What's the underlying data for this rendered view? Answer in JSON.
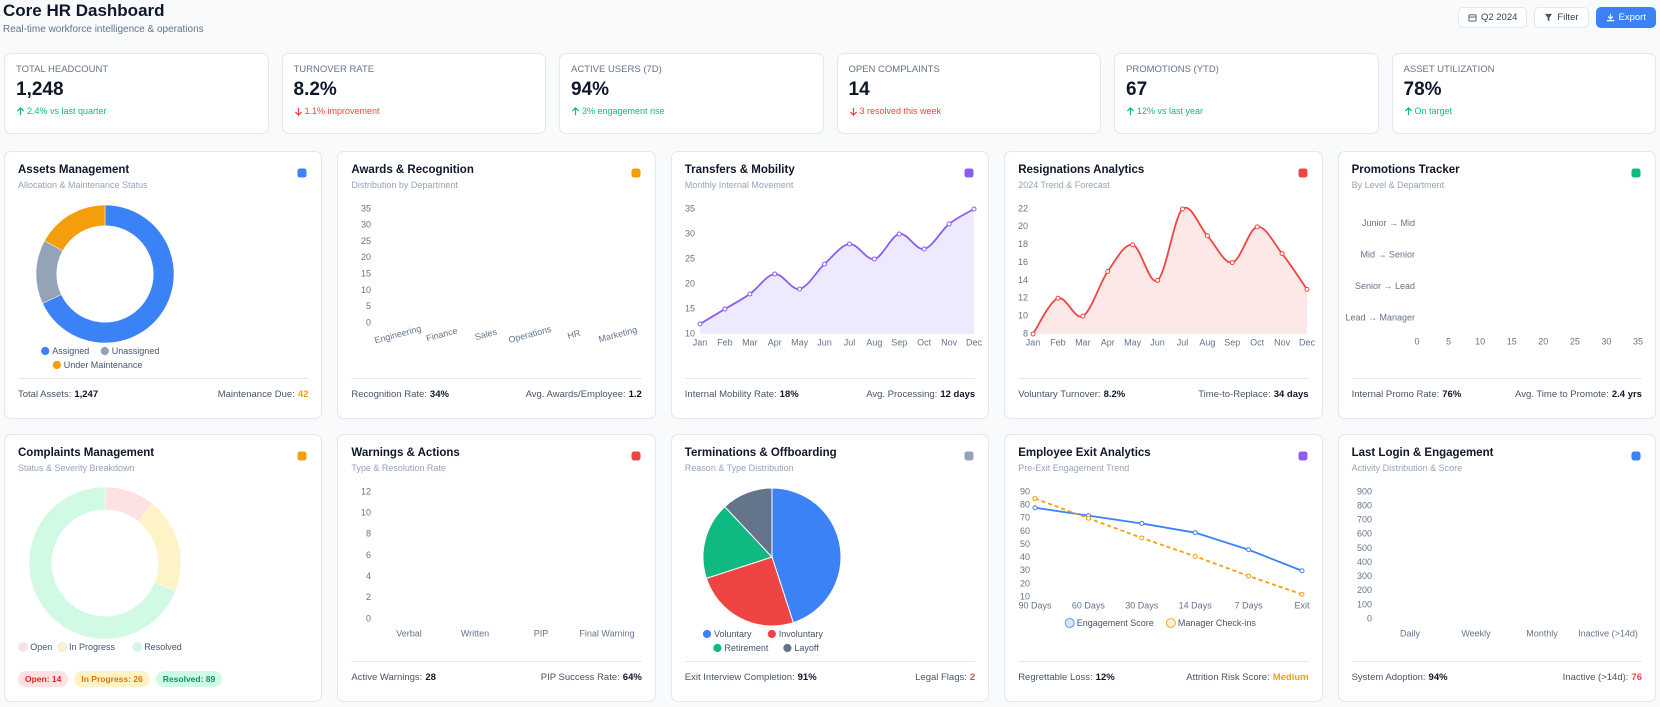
{
  "header": {
    "title": "Core HR Dashboard",
    "subtitle": "Real-time workforce intelligence & operations",
    "buttons": [
      "Q2 2024",
      "Filter",
      "Export"
    ]
  },
  "kpis": [
    {
      "label": "TOTAL HEADCOUNT",
      "value": "1,248",
      "change": "2.4% vs last quarter",
      "trend": "up"
    },
    {
      "label": "TURNOVER RATE",
      "value": "8.2%",
      "change": "1.1% improvement",
      "trend": "down"
    },
    {
      "label": "ACTIVE USERS (7D)",
      "value": "94%",
      "change": "3% engagement rise",
      "trend": "up"
    },
    {
      "label": "OPEN COMPLAINTS",
      "value": "14",
      "change": "3 resolved this week",
      "trend": "down"
    },
    {
      "label": "PROMOTIONS (YTD)",
      "value": "67",
      "change": "12% vs last year",
      "trend": "up"
    },
    {
      "label": "ASSET UTILIZATION",
      "value": "78%",
      "change": "On target",
      "trend": "up"
    }
  ],
  "panels": [
    {
      "title": "Assets Management",
      "subtitle": "Allocation & Maintenance Status",
      "accent": "#3b82f6",
      "chart": {
        "type": "donut",
        "categories": [
          "Assigned",
          "Unassigned",
          "Under Maintenance"
        ],
        "values": [
          68,
          15,
          17
        ],
        "colors": [
          "#3b82f6",
          "#94a3b8",
          "#f59e0b"
        ]
      },
      "footer": [
        {
          "label": "Total Assets:",
          "value": "1,247"
        },
        {
          "label": "Maintenance Due:",
          "value": "42",
          "color": "#f59e0b"
        }
      ]
    },
    {
      "title": "Awards & Recognition",
      "subtitle": "Distribution by Department",
      "accent": "#f59e0b",
      "chart": {
        "type": "bar",
        "categories": [
          "Engineering",
          "Finance",
          "Sales",
          "Operations",
          "HR",
          "Marketing"
        ],
        "ylim": [
          0,
          35
        ],
        "yticks": [
          0,
          5,
          10,
          15,
          20,
          25,
          30,
          35
        ],
        "label_angle": -15
      },
      "footer": [
        {
          "label": "Recognition Rate:",
          "value": "34%"
        },
        {
          "label": "Avg. Awards/Employee:",
          "value": "1.2"
        }
      ]
    },
    {
      "title": "Transfers & Mobility",
      "subtitle": "Monthly Internal Movement",
      "accent": "#8b5cf6",
      "chart": {
        "type": "line",
        "categories": [
          "Jan",
          "Feb",
          "Mar",
          "Apr",
          "May",
          "Jun",
          "Jul",
          "Aug",
          "Sep",
          "Oct",
          "Nov",
          "Dec"
        ],
        "values": [
          12,
          15,
          18,
          22,
          19,
          24,
          28,
          25,
          30,
          27,
          32,
          35
        ],
        "color": "#8b5cf6",
        "area_color": "#ede9fe",
        "smooth": true,
        "ylim": [
          10,
          35
        ],
        "yticks": [
          10,
          15,
          20,
          25,
          30,
          35
        ]
      },
      "footer": [
        {
          "label": "Internal Mobility Rate:",
          "value": "18%"
        },
        {
          "label": "Avg. Processing:",
          "value": "12 days"
        }
      ]
    },
    {
      "title": "Resignations Analytics",
      "subtitle": "2024 Trend & Forecast",
      "accent": "#ef4444",
      "chart": {
        "type": "line",
        "categories": [
          "Jan",
          "Feb",
          "Mar",
          "Apr",
          "May",
          "Jun",
          "Jul",
          "Aug",
          "Sep",
          "Oct",
          "Nov",
          "Dec"
        ],
        "values": [
          8,
          12,
          10,
          15,
          18,
          14,
          22,
          19,
          16,
          20,
          17,
          13
        ],
        "color": "#ef4444",
        "area_color": "#fde8e8",
        "smooth": true,
        "ylim": [
          8,
          22
        ],
        "yticks": [
          8,
          10,
          12,
          14,
          16,
          18,
          20,
          22
        ]
      },
      "footer": [
        {
          "label": "Voluntary Turnover:",
          "value": "8.2%"
        },
        {
          "label": "Time-to-Replace:",
          "value": "34 days"
        }
      ]
    },
    {
      "title": "Promotions Tracker",
      "subtitle": "By Level & Department",
      "accent": "#10b981",
      "chart": {
        "type": "hbar",
        "categories": [
          "Junior → Mid",
          "Mid → Senior",
          "Senior → Lead",
          "Lead → Manager"
        ],
        "xlim": [
          0,
          35
        ],
        "xticks": [
          0,
          5,
          10,
          15,
          20,
          25,
          30,
          35
        ]
      },
      "footer": [
        {
          "label": "Internal Promo Rate:",
          "value": "76%"
        },
        {
          "label": "Avg. Time to Promote:",
          "value": "2.4 yrs"
        }
      ]
    },
    {
      "title": "Complaints Management",
      "subtitle": "Status & Severity Breakdown",
      "accent": "#f59e0b",
      "chart": {
        "type": "donut",
        "categories": [
          "Open",
          "In Progress",
          "Resolved"
        ],
        "values": [
          14,
          26,
          89
        ],
        "value_labels": [
          "Open: 14",
          "In Progress: 26",
          "Resolved: 89"
        ],
        "colors": [
          "#fee2e2",
          "#fef3c7",
          "#d1fae5"
        ],
        "label_colors": [
          "#dc2626",
          "#d97706",
          "#059669"
        ]
      }
    },
    {
      "title": "Warnings & Actions",
      "subtitle": "Type & Resolution Rate",
      "accent": "#ef4444",
      "chart": {
        "type": "bar",
        "categories": [
          "Verbal",
          "Written",
          "PIP",
          "Final Warning"
        ],
        "ylim": [
          0,
          12
        ],
        "yticks": [
          0,
          2,
          4,
          6,
          8,
          10,
          12
        ]
      },
      "footer": [
        {
          "label": "Active Warnings:",
          "value": "28"
        },
        {
          "label": "PIP Success Rate:",
          "value": "64%"
        }
      ]
    },
    {
      "title": "Terminations & Offboarding",
      "subtitle": "Reason & Type Distribution",
      "accent": "#94a3b8",
      "chart": {
        "type": "pie",
        "categories": [
          "Voluntary",
          "Involuntary",
          "Retirement",
          "Layoff"
        ],
        "values": [
          45,
          25,
          18,
          12
        ],
        "colors": [
          "#3b82f6",
          "#ef4444",
          "#10b981",
          "#64748b"
        ]
      },
      "footer": [
        {
          "label": "Exit Interview Completion:",
          "value": "91%"
        },
        {
          "label": "Legal Flags:",
          "value": "2",
          "color": "#ef4444"
        }
      ]
    },
    {
      "title": "Employee Exit Analytics",
      "subtitle": "Pre-Exit Engagement Trend",
      "accent": "#8b5cf6",
      "chart": {
        "type": "line",
        "categories": [
          "90 Days",
          "60 Days",
          "30 Days",
          "14 Days",
          "7 Days",
          "Exit"
        ],
        "series": [
          {
            "name": "Engagement Score",
            "color": "#3b82f6",
            "values": [
              78,
              72,
              66,
              59,
              46,
              30
            ]
          },
          {
            "name": "Manager Check-ins",
            "color": "#f59e0b",
            "dash": true,
            "values": [
              85,
              70,
              55,
              41,
              26,
              12
            ]
          }
        ],
        "ylim": [
          10,
          90
        ],
        "yticks": [
          10,
          20,
          30,
          40,
          50,
          60,
          70,
          80,
          90
        ]
      },
      "footer": [
        {
          "label": "Regrettable Loss:",
          "value": "12%"
        },
        {
          "label": "Attrition Risk Score:",
          "value": "Medium",
          "color": "#f59e0b"
        }
      ]
    },
    {
      "title": "Last Login & Engagement",
      "subtitle": "Activity Distribution & Score",
      "accent": "#3b82f6",
      "chart": {
        "type": "bar",
        "categories": [
          "Daily",
          "Weekly",
          "Monthly",
          "Inactive (>14d)"
        ],
        "ylim": [
          0,
          900
        ],
        "yticks": [
          0,
          100,
          200,
          300,
          400,
          500,
          600,
          700,
          800,
          900
        ]
      },
      "footer": [
        {
          "label": "System Adoption:",
          "value": "94%"
        },
        {
          "label": "Inactive (>14d):",
          "value": "76",
          "color": "#ef4444"
        }
      ]
    }
  ]
}
